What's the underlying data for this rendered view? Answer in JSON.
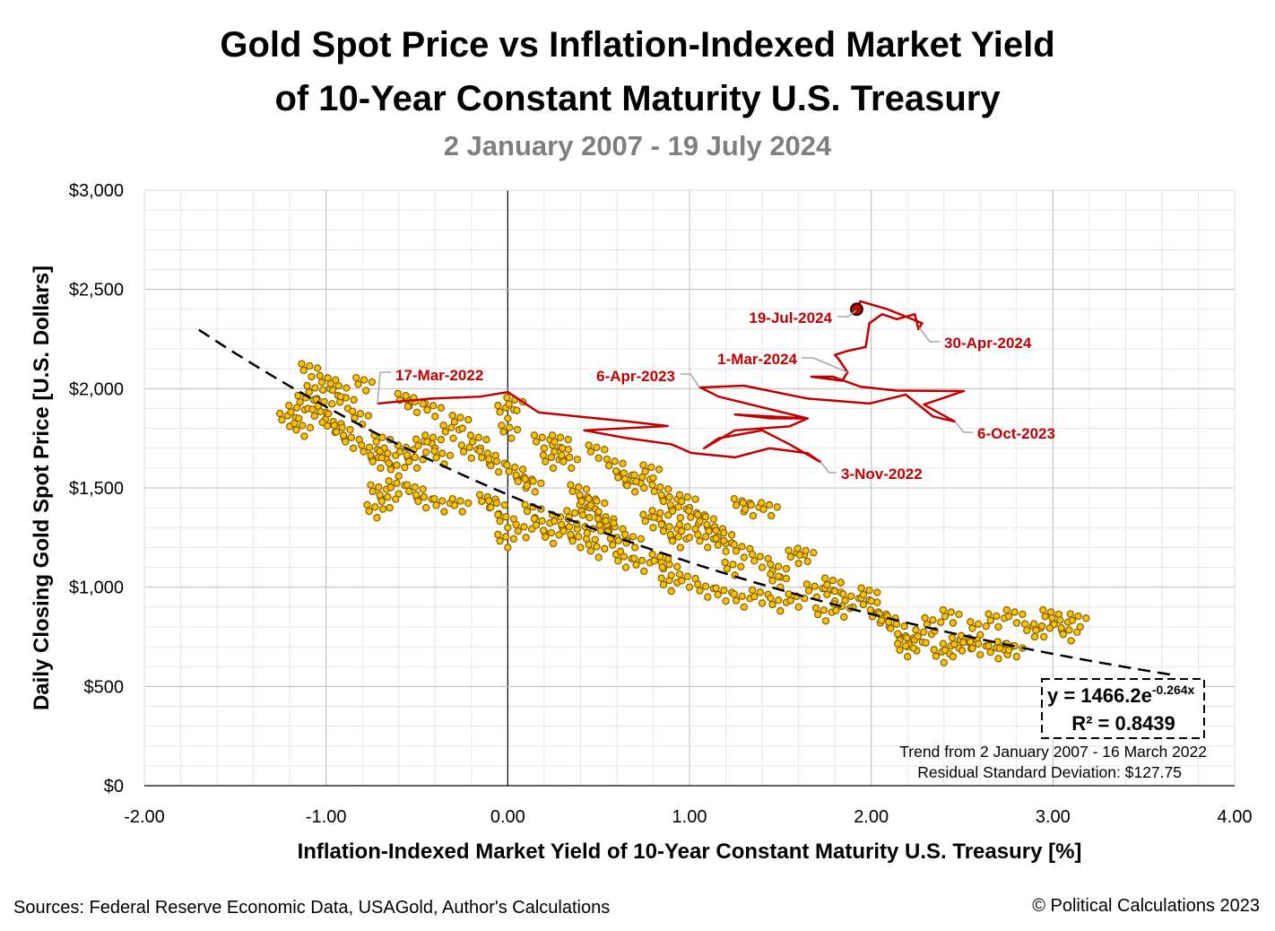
{
  "chart_data": {
    "type": "scatter",
    "title": "Gold Spot Price vs Inflation-Indexed Market Yield of 10-Year Constant Maturity U.S. Treasury",
    "title_lines": [
      "Gold Spot Price vs Inflation-Indexed Market Yield",
      "of 10-Year Constant Maturity U.S. Treasury"
    ],
    "subtitle": "2 January 2007 - 19 July 2024",
    "xlabel": "Inflation-Indexed Market Yield of 10-Year Constant Maturity U.S. Treasury [%]",
    "ylabel": "Daily Closing Gold Spot Price [U.S. Dollars]",
    "xlim": [
      -2,
      4
    ],
    "ylim": [
      0,
      3000
    ],
    "x_ticks": [
      "-2.00",
      "-1.00",
      "0.00",
      "1.00",
      "2.00",
      "3.00",
      "4.00"
    ],
    "y_ticks": [
      "$0",
      "$500",
      "$1,000",
      "$1,500",
      "$2,000",
      "$2,500",
      "$3,000"
    ],
    "grid": true,
    "colors": {
      "scatter_fill": "#ffc000",
      "scatter_edge": "#7f6000",
      "recent_line": "#c00000",
      "trend": "#000000",
      "grid_major": "#bfbfbf",
      "grid_minor": "#e6e6e6"
    },
    "series": [
      {
        "type": "scatter",
        "period": "2 January 2007 - 16 March 2022",
        "points": [
          [
            -1.2,
            1810
          ],
          [
            -1.15,
            1850
          ],
          [
            -1.1,
            1900
          ],
          [
            -1.08,
            2060
          ],
          [
            -1.05,
            1950
          ],
          [
            -1.0,
            1880
          ],
          [
            -0.98,
            2000
          ],
          [
            -0.95,
            1780
          ],
          [
            -0.9,
            1750
          ],
          [
            -0.88,
            1900
          ],
          [
            -0.85,
            1700
          ],
          [
            -0.8,
            1820
          ],
          [
            -0.78,
            1990
          ],
          [
            -0.75,
            1650
          ],
          [
            -0.7,
            1600
          ],
          [
            -0.68,
            1700
          ],
          [
            -0.65,
            1620
          ],
          [
            -0.6,
            1560
          ],
          [
            -0.55,
            1650
          ],
          [
            -0.5,
            1600
          ],
          [
            -0.45,
            1680
          ],
          [
            -0.4,
            1700
          ],
          [
            -0.35,
            1620
          ],
          [
            -0.3,
            1750
          ],
          [
            -0.25,
            1800
          ],
          [
            -0.7,
            1450
          ],
          [
            -0.65,
            1400
          ],
          [
            -0.72,
            1350
          ],
          [
            -0.6,
            1470
          ],
          [
            -0.5,
            1450
          ],
          [
            -0.45,
            1400
          ],
          [
            -0.35,
            1380
          ],
          [
            -0.25,
            1380
          ],
          [
            -0.4,
            1860
          ],
          [
            -0.5,
            1880
          ],
          [
            -0.55,
            1910
          ],
          [
            -1.12,
            1760
          ],
          [
            -1.02,
            1830
          ],
          [
            -0.92,
            1960
          ],
          [
            -0.2,
            1650
          ],
          [
            -0.15,
            1700
          ],
          [
            -0.1,
            1620
          ],
          [
            -0.05,
            1580
          ],
          [
            0.0,
            1850
          ],
          [
            0.02,
            1750
          ],
          [
            0.05,
            1550
          ],
          [
            0.1,
            1500
          ],
          [
            0.15,
            1480
          ],
          [
            0.2,
            1700
          ],
          [
            0.25,
            1600
          ],
          [
            0.3,
            1650
          ],
          [
            0.35,
            1600
          ],
          [
            0.05,
            1890
          ],
          [
            -0.1,
            1400
          ],
          [
            -0.05,
            1370
          ],
          [
            0.0,
            1300
          ],
          [
            0.0,
            1200
          ],
          [
            0.1,
            1250
          ],
          [
            0.15,
            1350
          ],
          [
            0.2,
            1280
          ],
          [
            0.25,
            1220
          ],
          [
            0.3,
            1300
          ],
          [
            0.35,
            1250
          ],
          [
            0.4,
            1200
          ],
          [
            0.45,
            1350
          ],
          [
            0.5,
            1150
          ],
          [
            0.55,
            1300
          ],
          [
            0.6,
            1250
          ],
          [
            0.65,
            1100
          ],
          [
            0.7,
            1200
          ],
          [
            0.75,
            1080
          ],
          [
            0.6,
            1580
          ],
          [
            0.65,
            1520
          ],
          [
            0.7,
            1480
          ],
          [
            0.75,
            1500
          ],
          [
            0.8,
            1550
          ],
          [
            0.85,
            1450
          ],
          [
            0.9,
            1400
          ],
          [
            0.95,
            1350
          ],
          [
            1.0,
            1400
          ],
          [
            1.05,
            1320
          ],
          [
            1.1,
            1300
          ],
          [
            1.15,
            1250
          ],
          [
            1.2,
            1220
          ],
          [
            1.3,
            1380
          ],
          [
            1.35,
            1360
          ],
          [
            0.8,
            1300
          ],
          [
            0.85,
            1320
          ],
          [
            0.9,
            1250
          ],
          [
            0.95,
            1200
          ],
          [
            1.0,
            1250
          ],
          [
            1.1,
            1200
          ],
          [
            1.2,
            1180
          ],
          [
            1.3,
            1150
          ],
          [
            1.4,
            1100
          ],
          [
            1.5,
            1050
          ],
          [
            1.6,
            1120
          ],
          [
            1.65,
            1130
          ],
          [
            1.5,
            1000
          ],
          [
            0.9,
            980
          ],
          [
            1.0,
            1000
          ],
          [
            1.1,
            950
          ],
          [
            1.2,
            930
          ],
          [
            1.3,
            900
          ],
          [
            1.4,
            920
          ],
          [
            1.5,
            880
          ],
          [
            1.6,
            900
          ],
          [
            1.7,
            950
          ],
          [
            1.8,
            930
          ],
          [
            1.9,
            900
          ],
          [
            2.0,
            880
          ],
          [
            2.05,
            820
          ],
          [
            1.75,
            830
          ],
          [
            1.85,
            850
          ],
          [
            2.1,
            800
          ],
          [
            2.15,
            760
          ],
          [
            2.2,
            700
          ],
          [
            2.25,
            680
          ],
          [
            2.2,
            650
          ],
          [
            2.3,
            720
          ],
          [
            2.4,
            620
          ],
          [
            2.45,
            650
          ],
          [
            2.5,
            680
          ],
          [
            2.55,
            690
          ],
          [
            2.6,
            660
          ],
          [
            2.7,
            640
          ],
          [
            2.75,
            660
          ],
          [
            2.8,
            650
          ],
          [
            2.35,
            780
          ],
          [
            2.45,
            820
          ],
          [
            2.6,
            760
          ],
          [
            2.7,
            800
          ],
          [
            2.8,
            820
          ],
          [
            2.9,
            750
          ],
          [
            3.0,
            820
          ],
          [
            3.05,
            780
          ],
          [
            3.1,
            730
          ],
          [
            3.15,
            800
          ],
          [
            2.95,
            750
          ],
          [
            0.9,
            1060
          ],
          [
            0.85,
            1100
          ],
          [
            0.4,
            1450
          ],
          [
            0.45,
            1400
          ],
          [
            0.5,
            1380
          ],
          [
            1.45,
            1360
          ],
          [
            0.3,
            1700
          ],
          [
            0.5,
            1650
          ],
          [
            0.55,
            1280
          ],
          [
            0.62,
            1180
          ],
          [
            0.48,
            1240
          ],
          [
            0.38,
            1320
          ],
          [
            1.25,
            1060
          ],
          [
            1.8,
            980
          ],
          [
            2.0,
            930
          ]
        ]
      },
      {
        "type": "line",
        "period": "17 March 2022 - 19 July 2024",
        "points": [
          [
            -0.72,
            1925
          ],
          [
            -0.42,
            1950
          ],
          [
            -0.15,
            1960
          ],
          [
            0.0,
            1983
          ],
          [
            0.17,
            1880
          ],
          [
            0.66,
            1835
          ],
          [
            0.88,
            1812
          ],
          [
            0.42,
            1790
          ],
          [
            0.66,
            1750
          ],
          [
            0.9,
            1720
          ],
          [
            1.01,
            1676
          ],
          [
            1.25,
            1654
          ],
          [
            1.44,
            1700
          ],
          [
            1.65,
            1675
          ],
          [
            1.72,
            1631
          ],
          [
            1.55,
            1720
          ],
          [
            1.4,
            1790
          ],
          [
            1.16,
            1750
          ],
          [
            1.08,
            1700
          ],
          [
            1.25,
            1790
          ],
          [
            1.55,
            1810
          ],
          [
            1.65,
            1850
          ],
          [
            1.25,
            1870
          ],
          [
            1.45,
            1850
          ],
          [
            1.65,
            1850
          ],
          [
            1.16,
            1960
          ],
          [
            1.06,
            2006
          ],
          [
            1.3,
            2015
          ],
          [
            1.65,
            1950
          ],
          [
            1.99,
            1925
          ],
          [
            2.19,
            1970
          ],
          [
            2.34,
            1860
          ],
          [
            2.46,
            1834
          ],
          [
            2.29,
            1920
          ],
          [
            2.51,
            1988
          ],
          [
            2.14,
            1990
          ],
          [
            1.94,
            2010
          ],
          [
            1.79,
            2060
          ],
          [
            1.67,
            2060
          ],
          [
            1.84,
            2040
          ],
          [
            1.87,
            2082
          ],
          [
            1.82,
            2150
          ],
          [
            1.8,
            2170
          ],
          [
            1.87,
            2190
          ],
          [
            1.97,
            2210
          ],
          [
            1.99,
            2330
          ],
          [
            2.06,
            2375
          ],
          [
            2.14,
            2350
          ],
          [
            2.24,
            2375
          ],
          [
            2.26,
            2300
          ],
          [
            2.28,
            2330
          ],
          [
            2.09,
            2400
          ],
          [
            1.94,
            2440
          ],
          [
            1.92,
            2400
          ]
        ],
        "end_marker": [
          1.92,
          2400
        ]
      }
    ],
    "trendline": {
      "type": "exponential",
      "a": 1466.2,
      "b": -0.264,
      "x_range": [
        -1.7,
        3.65
      ],
      "equation": "y = 1466.2e",
      "equation_exponent": "-0.264x",
      "r_squared": "R² = 0.8439"
    },
    "annotations": [
      "17-Mar-2022",
      "6-Apr-2023",
      "1-Mar-2024",
      "19-Jul-2024",
      "30-Apr-2024",
      "6-Oct-2023",
      "3-Nov-2022"
    ],
    "notes": [
      "Trend from 2 January 2007 - 16 March 2022",
      "Residual Standard Deviation: $127.75"
    ]
  },
  "footer": {
    "sources": "Sources: Federal Reserve Economic Data, USAGold, Author's Calculations",
    "copyright": "© Political Calculations 2023"
  }
}
